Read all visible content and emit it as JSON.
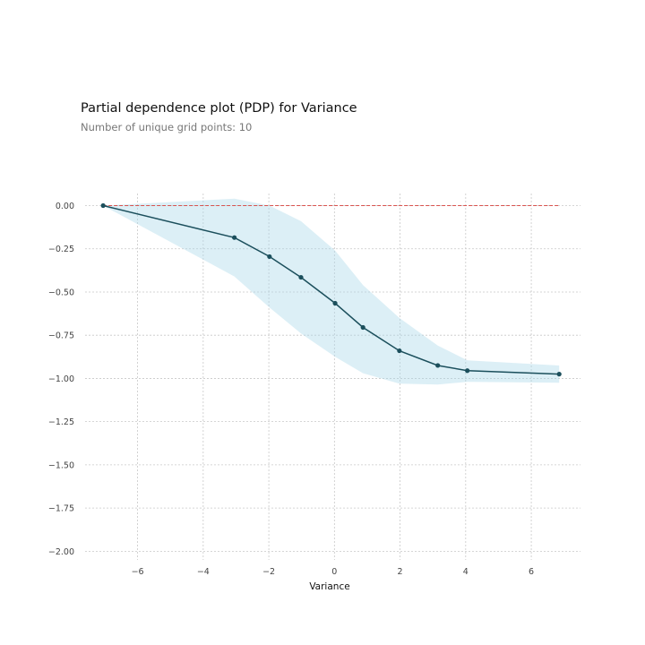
{
  "chart_data": {
    "type": "line",
    "title": "Partial dependence plot (PDP) for Variance",
    "subtitle": "Number of unique grid points: 10",
    "xlabel": "Variance",
    "ylabel": "",
    "xlim": [
      -7.6,
      7.5
    ],
    "ylim": [
      -2.05,
      0.07
    ],
    "xticks": [
      -6,
      -4,
      -2,
      0,
      2,
      4,
      6
    ],
    "xtick_labels": [
      "−6",
      "−4",
      "−2",
      "0",
      "2",
      "4",
      "6"
    ],
    "yticks": [
      0.0,
      -0.25,
      -0.5,
      -0.75,
      -1.0,
      -1.25,
      -1.5,
      -1.75,
      -2.0
    ],
    "ytick_labels": [
      "0.00",
      "−0.25",
      "−0.50",
      "−0.75",
      "−1.00",
      "−1.25",
      "−1.50",
      "−1.75",
      "−2.00"
    ],
    "grid": true,
    "reference_line": {
      "y": 0.0,
      "color": "#d9534f",
      "style": "dashed"
    },
    "series": [
      {
        "x": [
          -7.05,
          -3.05,
          -1.98,
          -1.02,
          0.02,
          0.87,
          1.98,
          3.15,
          4.05,
          6.85
        ],
        "values": [
          0.0,
          -0.185,
          -0.295,
          -0.415,
          -0.565,
          -0.705,
          -0.84,
          -0.925,
          -0.955,
          -0.975
        ],
        "upper": [
          0.0,
          0.04,
          0.0,
          -0.09,
          -0.26,
          -0.46,
          -0.65,
          -0.81,
          -0.895,
          -0.925
        ],
        "lower": [
          0.0,
          -0.41,
          -0.59,
          -0.74,
          -0.875,
          -0.97,
          -1.03,
          -1.035,
          -1.02,
          -1.025
        ],
        "line_color": "#1b4f5c",
        "band_color": "#a8d8e8"
      }
    ]
  }
}
